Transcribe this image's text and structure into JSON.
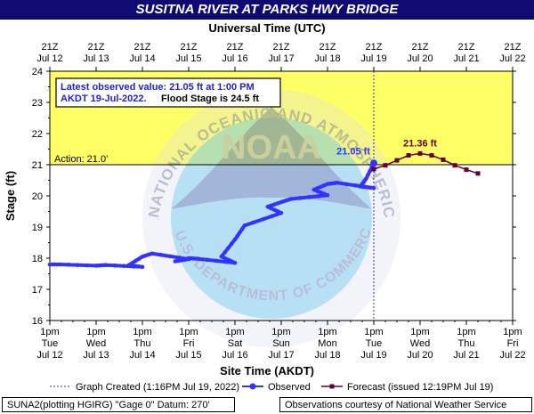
{
  "title": "SUSITNA RIVER AT PARKS HWY BRIDGE",
  "chart_data": {
    "type": "line",
    "title": "SUSITNA RIVER AT PARKS HWY BRIDGE",
    "top_axis_title": "Universal Time (UTC)",
    "xlabel": "Site Time (AKDT)",
    "ylabel": "Stage (ft)",
    "ylim": [
      16,
      24
    ],
    "yticks": [
      16,
      17,
      18,
      19,
      20,
      21,
      22,
      23,
      24
    ],
    "x_days": [
      "Jul 12",
      "Jul 13",
      "Jul 14",
      "Jul 15",
      "Jul 16",
      "Jul 17",
      "Jul 18",
      "Jul 19",
      "Jul 20",
      "Jul 21",
      "Jul 22"
    ],
    "bottom_ticks": [
      {
        "time": "1pm",
        "day": "Tue",
        "date": "Jul 12"
      },
      {
        "time": "1pm",
        "day": "Wed",
        "date": "Jul 13"
      },
      {
        "time": "1pm",
        "day": "Thu",
        "date": "Jul 14"
      },
      {
        "time": "1pm",
        "day": "Fri",
        "date": "Jul 15"
      },
      {
        "time": "1pm",
        "day": "Sat",
        "date": "Jul 16"
      },
      {
        "time": "1pm",
        "day": "Sun",
        "date": "Jul 17"
      },
      {
        "time": "1pm",
        "day": "Mon",
        "date": "Jul 18"
      },
      {
        "time": "1pm",
        "day": "Tue",
        "date": "Jul 19"
      },
      {
        "time": "1pm",
        "day": "Wed",
        "date": "Jul 20"
      },
      {
        "time": "1pm",
        "day": "Thu",
        "date": "Jul 21"
      },
      {
        "time": "1pm",
        "day": "Fri",
        "date": "Jul 22"
      }
    ],
    "top_ticks": [
      {
        "time": "21Z",
        "date": "Jul 12"
      },
      {
        "time": "21Z",
        "date": "Jul 13"
      },
      {
        "time": "21Z",
        "date": "Jul 14"
      },
      {
        "time": "21Z",
        "date": "Jul 15"
      },
      {
        "time": "21Z",
        "date": "Jul 16"
      },
      {
        "time": "21Z",
        "date": "Jul 17"
      },
      {
        "time": "21Z",
        "date": "Jul 18"
      },
      {
        "time": "21Z",
        "date": "Jul 19"
      },
      {
        "time": "21Z",
        "date": "Jul 20"
      },
      {
        "time": "21Z",
        "date": "Jul 21"
      },
      {
        "time": "21Z",
        "date": "Jul 22"
      }
    ],
    "action_stage": 21.0,
    "action_label": "Action: 21.0'",
    "flood_stage": 24.5,
    "band_colors": {
      "flood_zone": "#ffff66",
      "normal": "#ffffff"
    },
    "series": [
      {
        "name": "Observed",
        "color": "#3333ff",
        "x": [
          "Jul 12",
          "Jul 12 6:00pm",
          "Jul 13",
          "Jul 13 6:00pm",
          "Jul 14",
          "Jul 14 6:00am",
          "Jul 14 1:00pm",
          "Jul 14 6:00pm",
          "Jul 15",
          "Jul 15 6:00am",
          "Jul 15 1:00pm",
          "Jul 15 6:00pm",
          "Jul 16",
          "Jul 16 6:00am",
          "Jul 16 1:00pm",
          "Jul 16 6:00pm",
          "Jul 17",
          "Jul 17 6:00am",
          "Jul 17 1:00pm",
          "Jul 17 6:00pm",
          "Jul 18",
          "Jul 18 6:00am",
          "Jul 18 1:00pm",
          "Jul 18 6:00pm",
          "Jul 19",
          "Jul 19 6:00am",
          "Jul 19 9:00am",
          "Jul 19 1:00pm"
        ],
        "y": [
          17.8,
          17.8,
          17.76,
          17.78,
          17.72,
          17.78,
          18.05,
          18.15,
          17.97,
          17.9,
          18.0,
          17.98,
          17.85,
          18.05,
          18.6,
          19.05,
          19.45,
          19.65,
          19.8,
          19.9,
          20.02,
          20.2,
          20.38,
          20.42,
          20.25,
          20.3,
          20.55,
          21.05
        ]
      },
      {
        "name": "Forecast (issued 12:19PM Jul 19)",
        "color": "#660033",
        "x": [
          "Jul 19 1:00pm",
          "Jul 19 7:00pm",
          "Jul 20 1:00am",
          "Jul 20 7:00am",
          "Jul 20 1:00pm",
          "Jul 20 7:00pm",
          "Jul 21 1:00am",
          "Jul 21 7:00am",
          "Jul 21 1:00pm",
          "Jul 21 7:00pm"
        ],
        "y": [
          20.86,
          20.98,
          21.14,
          21.3,
          21.36,
          21.3,
          21.16,
          20.98,
          20.84,
          20.72
        ]
      }
    ],
    "latest_observation": {
      "value": 21.05,
      "label": "21.05 ft"
    },
    "forecast_peak": {
      "value": 21.36,
      "label": "21.36 ft"
    },
    "info_box": {
      "line1": "Latest observed value: 21.05 ft at 1:00 PM",
      "line2_a": "AKDT 19-Jul-2022.",
      "line2_b": "Flood Stage is 24.5 ft"
    },
    "legend": {
      "graph_created": "Graph Created (1:16PM Jul 19, 2022)",
      "observed": "Observed",
      "forecast": "Forecast (issued 12:19PM Jul 19)"
    },
    "grid": false
  },
  "footer": {
    "left": "SUNA2(plotting HGIRG) \"Gage 0\" Datum: 270'",
    "right": "Observations courtesy of National Weather Service"
  },
  "watermark": {
    "text_top": "NATIONAL OCEANIC AND ATMOSPHERIC ADMINISTRATION",
    "text_bottom": "U.S. DEPARTMENT OF COMMERCE",
    "center": "NOAA"
  }
}
